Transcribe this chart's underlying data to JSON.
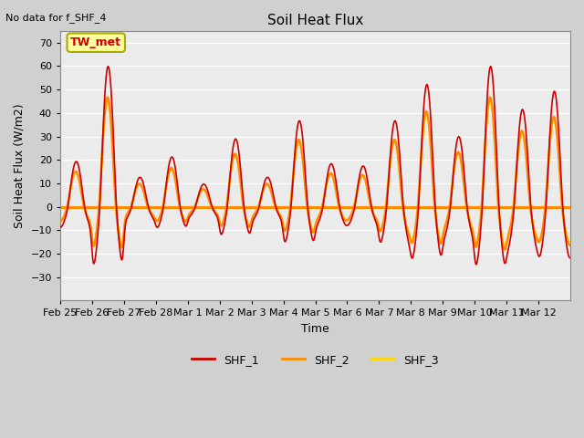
{
  "title": "Soil Heat Flux",
  "subtitle": "No data for f_SHF_4",
  "ylabel": "Soil Heat Flux (W/m2)",
  "xlabel": "Time",
  "ylim": [
    -40,
    75
  ],
  "yticks": [
    -30,
    -20,
    -10,
    0,
    10,
    20,
    30,
    40,
    50,
    60,
    70
  ],
  "xtick_labels": [
    "Feb 25",
    "Feb 26",
    "Feb 27",
    "Feb 28",
    "Mar 1",
    "Mar 2",
    "Mar 3",
    "Mar 4",
    "Mar 5",
    "Mar 6",
    "Mar 7",
    "Mar 8",
    "Mar 9",
    "Mar 10",
    "Mar 11",
    "Mar 12"
  ],
  "n_xticks": 16,
  "color_shf1": "#CC0000",
  "color_shf2": "#FF8C00",
  "color_shf3": "#FFD700",
  "color_zeroline": "#FF8C00",
  "fig_facecolor": "#D0D0D0",
  "ax_facecolor": "#EBEBEB",
  "grid_color": "#FFFFFF",
  "legend_entries": [
    "SHF_1",
    "SHF_2",
    "SHF_3"
  ],
  "annotation_box": "TW_met",
  "annotation_box_facecolor": "#FFFFA0",
  "annotation_box_edgecolor": "#AAAA00",
  "annotation_text_color": "#CC0000",
  "n_days": 16,
  "pts_per_day": 48,
  "day_amplitudes": [
    20,
    62,
    13,
    22,
    10,
    30,
    13,
    38,
    19,
    18,
    38,
    54,
    31,
    62,
    43,
    51
  ]
}
